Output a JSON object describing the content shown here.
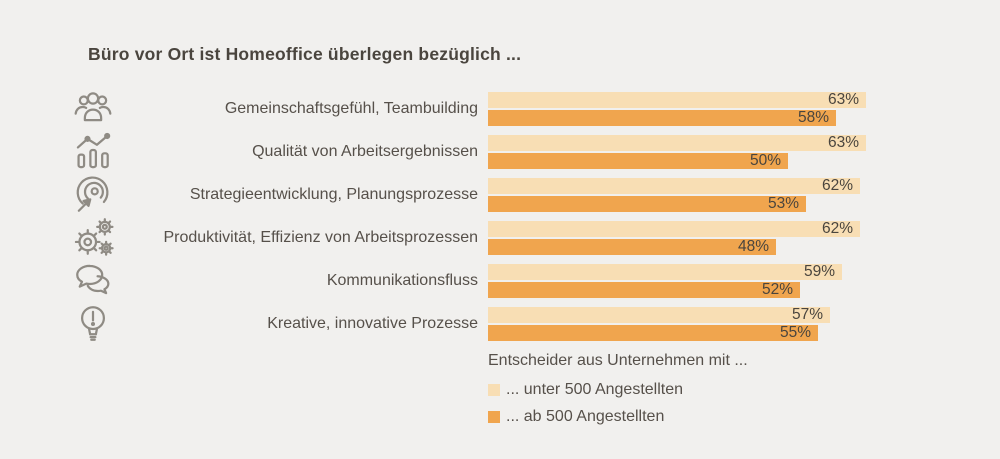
{
  "title": "Büro vor Ort ist Homeoffice überlegen bezüglich ...",
  "colors": {
    "background": "#f1f0ee",
    "light_bar": "#f8deb4",
    "dark_bar": "#f0a54e",
    "text_dark": "#4a453e",
    "text_medium": "#56504a",
    "icon_stroke": "#8f8b84"
  },
  "chart_data": {
    "type": "bar",
    "orientation": "horizontal",
    "title": "Büro vor Ort ist Homeoffice überlegen bezüglich ...",
    "categories": [
      "Gemeinschaftsgefühl, Teambuilding",
      "Qualität von Arbeitsergebnissen",
      "Strategieentwicklung, Planungsprozesse",
      "Produktivität, Effizienz von Arbeitsprozessen",
      "Kommunikationsfluss",
      "Kreative, innovative Prozesse"
    ],
    "category_icons": [
      "people-group-icon",
      "trend-chart-icon",
      "target-arrow-icon",
      "gears-icon",
      "speech-bubbles-icon",
      "lightbulb-icon"
    ],
    "series": [
      {
        "name": "... unter 500 Angestellten",
        "values": [
          63,
          63,
          62,
          62,
          59,
          57
        ],
        "labels": [
          "63%",
          "63%",
          "62%",
          "62%",
          "59%",
          "57%"
        ],
        "color": "#f8deb4"
      },
      {
        "name": "... ab 500 Angestellten",
        "values": [
          58,
          50,
          53,
          48,
          52,
          55
        ],
        "labels": [
          "58%",
          "50%",
          "53%",
          "48%",
          "52%",
          "55%"
        ],
        "color": "#f0a54e"
      }
    ],
    "value_suffix": "%",
    "xlim": [
      0,
      63
    ],
    "grid": false,
    "legend_position": "bottom-right",
    "value_labels": "inside-end"
  },
  "legend": {
    "heading": "Entscheider aus Unternehmen mit ...",
    "items": [
      {
        "label": "... unter 500 Angestellten",
        "color": "#f8deb4"
      },
      {
        "label": "... ab 500 Angestellten",
        "color": "#f0a54e"
      }
    ]
  }
}
